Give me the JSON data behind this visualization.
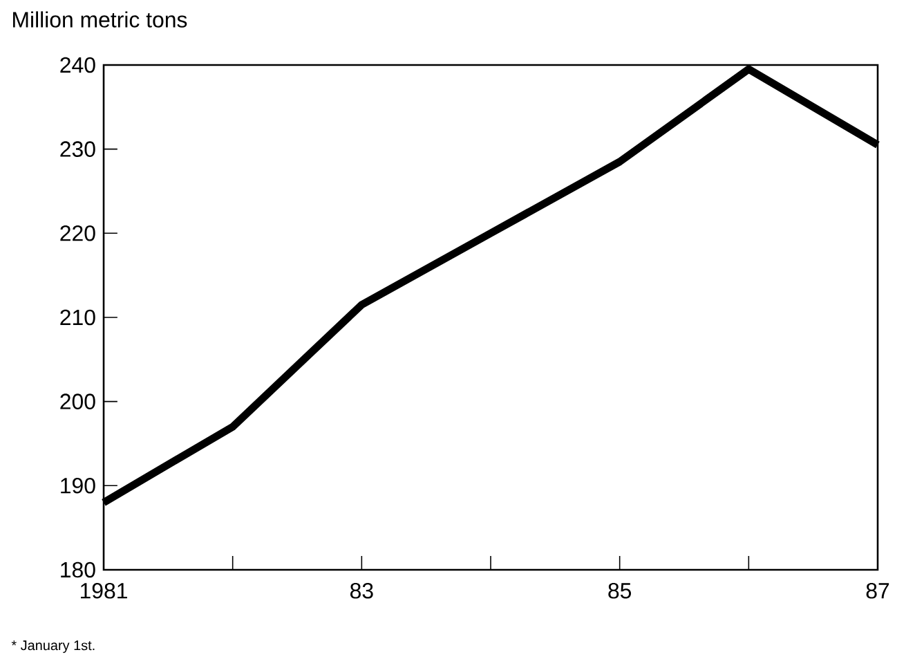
{
  "chart_data": {
    "type": "line",
    "ylabel": "Million metric tons",
    "annotations": [
      "* January 1st."
    ],
    "x": [
      1981,
      1982,
      1983,
      1984,
      1985,
      1986,
      1987
    ],
    "series": [
      {
        "color": "#000000",
        "values": [
          188,
          197,
          211.5,
          220,
          228.5,
          239.5,
          230.5
        ]
      }
    ],
    "xlim": [
      1981,
      1987
    ],
    "xticks": [
      {
        "value": 1981,
        "label": "1981"
      },
      {
        "value": 1982,
        "label": null
      },
      {
        "value": 1983,
        "label": "83"
      },
      {
        "value": 1984,
        "label": null
      },
      {
        "value": 1985,
        "label": "85"
      },
      {
        "value": 1986,
        "label": null
      },
      {
        "value": 1987,
        "label": "87"
      }
    ],
    "ylim": [
      180,
      240
    ],
    "yticks": [
      180,
      190,
      200,
      210,
      220,
      230,
      240
    ],
    "grid": false,
    "marker": "none",
    "line_style": "solid"
  }
}
